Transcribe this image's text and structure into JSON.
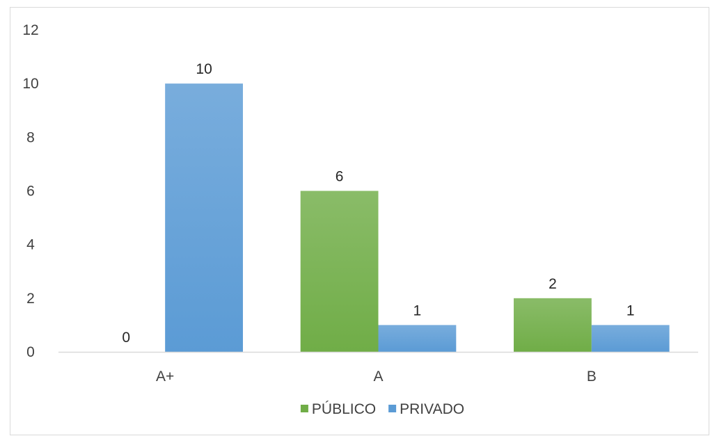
{
  "chart_data": {
    "type": "bar",
    "title": "",
    "xlabel": "",
    "ylabel": "",
    "categories": [
      "A+",
      "A",
      "B"
    ],
    "series": [
      {
        "name": "PÚBLICO",
        "values": [
          0,
          6,
          2
        ],
        "color": "#70ad47"
      },
      {
        "name": "PRIVADO",
        "values": [
          10,
          1,
          1
        ],
        "color": "#5b9bd5"
      }
    ],
    "ylim": [
      0,
      12
    ],
    "yticks": [
      0,
      2,
      4,
      6,
      8,
      10,
      12
    ],
    "data_labels": true,
    "grid": false,
    "legend": "bottom"
  }
}
